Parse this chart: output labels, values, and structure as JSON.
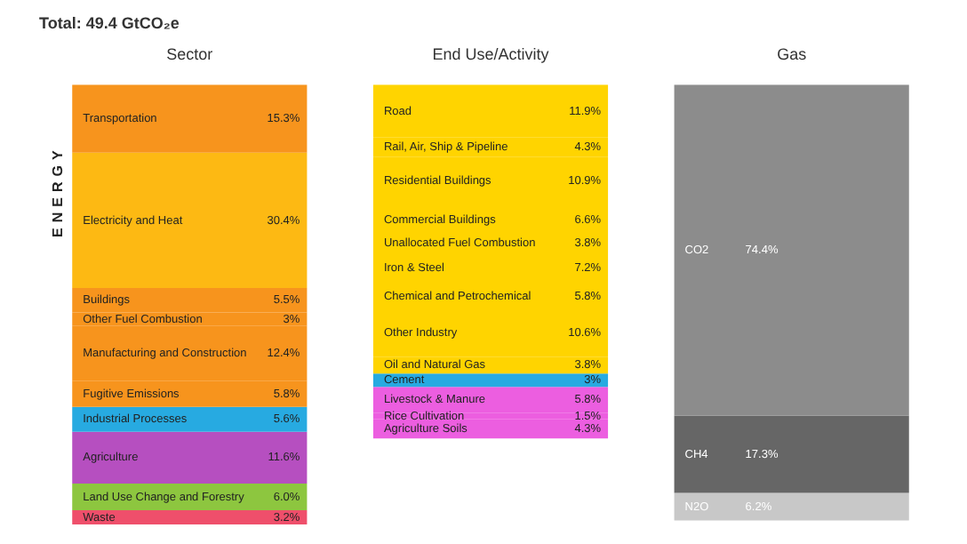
{
  "chart_data": {
    "type": "other",
    "title": "Total: 49.4 GtCO₂e",
    "annotations": [
      "ENERGY"
    ],
    "categories": [
      "Sector",
      "End Use/Activity",
      "Gas"
    ],
    "series": [
      {
        "name": "Transportation",
        "color": "#f7941d",
        "values": [
          15.3,
          null,
          null
        ],
        "value_labels": [
          "15.3%",
          null,
          null
        ]
      },
      {
        "name": "Electricity and Heat",
        "color": "#fdb913",
        "values": [
          30.4,
          null,
          null
        ],
        "value_labels": [
          "30.4%",
          null,
          null
        ]
      },
      {
        "name": "Buildings",
        "color": "#f7941d",
        "values": [
          5.5,
          null,
          null
        ],
        "value_labels": [
          "5.5%",
          null,
          null
        ]
      },
      {
        "name": "Other Fuel Combustion",
        "color": "#f7941d",
        "values": [
          3,
          null,
          null
        ],
        "value_labels": [
          "3%",
          null,
          null
        ]
      },
      {
        "name": "Manufacturing and Construction",
        "color": "#f7941d",
        "values": [
          12.4,
          null,
          null
        ],
        "value_labels": [
          "12.4%",
          null,
          null
        ]
      },
      {
        "name": "Fugitive Emissions",
        "color": "#f7941d",
        "values": [
          5.8,
          null,
          null
        ],
        "value_labels": [
          "5.8%",
          null,
          null
        ]
      },
      {
        "name": "Industrial Processes",
        "color": "#27aae1",
        "values": [
          5.6,
          null,
          null
        ],
        "value_labels": [
          "5.6%",
          null,
          null
        ]
      },
      {
        "name": "Agriculture",
        "color": "#b64fc0",
        "values": [
          11.6,
          null,
          null
        ],
        "value_labels": [
          "11.6%",
          null,
          null
        ]
      },
      {
        "name": "Land Use Change and Forestry",
        "color": "#8dc63f",
        "values": [
          6,
          null,
          null
        ],
        "value_labels": [
          "6.0%",
          null,
          null
        ]
      },
      {
        "name": "Waste",
        "color": "#ef4f6b",
        "values": [
          3.2,
          null,
          null
        ],
        "value_labels": [
          "3.2%",
          null,
          null
        ]
      },
      {
        "name": "Road",
        "color": "#ffd400",
        "values": [
          null,
          11.9,
          null
        ],
        "value_labels": [
          null,
          "11.9%",
          null
        ]
      },
      {
        "name": "Rail, Air, Ship & Pipeline",
        "color": "#ffd400",
        "values": [
          null,
          4.3,
          null
        ],
        "value_labels": [
          null,
          "4.3%",
          null
        ]
      },
      {
        "name": "Residential Buildings",
        "color": "#ffd400",
        "values": [
          null,
          10.9,
          null
        ],
        "value_labels": [
          null,
          "10.9%",
          null
        ]
      },
      {
        "name": "Commercial Buildings",
        "color": "#ffd400",
        "values": [
          null,
          6.6,
          null
        ],
        "value_labels": [
          null,
          "6.6%",
          null
        ]
      },
      {
        "name": "Unallocated Fuel Combustion",
        "color": "#ffd400",
        "values": [
          null,
          3.8,
          null
        ],
        "value_labels": [
          null,
          "3.8%",
          null
        ]
      },
      {
        "name": "Iron & Steel",
        "color": "#ffd400",
        "values": [
          null,
          7.2,
          null
        ],
        "value_labels": [
          null,
          "7.2%",
          null
        ]
      },
      {
        "name": "Chemical and Petrochemical",
        "color": "#ffd400",
        "values": [
          null,
          5.8,
          null
        ],
        "value_labels": [
          null,
          "5.8%",
          null
        ]
      },
      {
        "name": "Other Industry",
        "color": "#ffd400",
        "values": [
          null,
          10.6,
          null
        ],
        "value_labels": [
          null,
          "10.6%",
          null
        ]
      },
      {
        "name": "Oil and Natural Gas",
        "color": "#ffd400",
        "values": [
          null,
          3.8,
          null
        ],
        "value_labels": [
          null,
          "3.8%",
          null
        ]
      },
      {
        "name": "Cement",
        "color": "#27aae1",
        "values": [
          null,
          3,
          null
        ],
        "value_labels": [
          null,
          "3%",
          null
        ]
      },
      {
        "name": "Livestock & Manure",
        "color": "#ec5ee0",
        "values": [
          null,
          5.8,
          null
        ],
        "value_labels": [
          null,
          "5.8%",
          null
        ]
      },
      {
        "name": "Rice Cultivation",
        "color": "#ec5ee0",
        "values": [
          null,
          1.5,
          null
        ],
        "value_labels": [
          null,
          "1.5%",
          null
        ]
      },
      {
        "name": "Agriculture Soils",
        "color": "#ec5ee0",
        "values": [
          null,
          4.3,
          null
        ],
        "value_labels": [
          null,
          "4.3%",
          null
        ]
      },
      {
        "name": "CO2",
        "color": "#8c8c8c",
        "values": [
          null,
          null,
          74.4
        ],
        "value_labels": [
          null,
          null,
          "74.4%"
        ]
      },
      {
        "name": "CH4",
        "color": "#666666",
        "values": [
          null,
          null,
          17.3
        ],
        "value_labels": [
          null,
          null,
          "17.3%"
        ]
      },
      {
        "name": "N2O",
        "color": "#c8c8c8",
        "values": [
          null,
          null,
          6.2
        ],
        "value_labels": [
          null,
          null,
          "6.2%"
        ]
      }
    ]
  }
}
